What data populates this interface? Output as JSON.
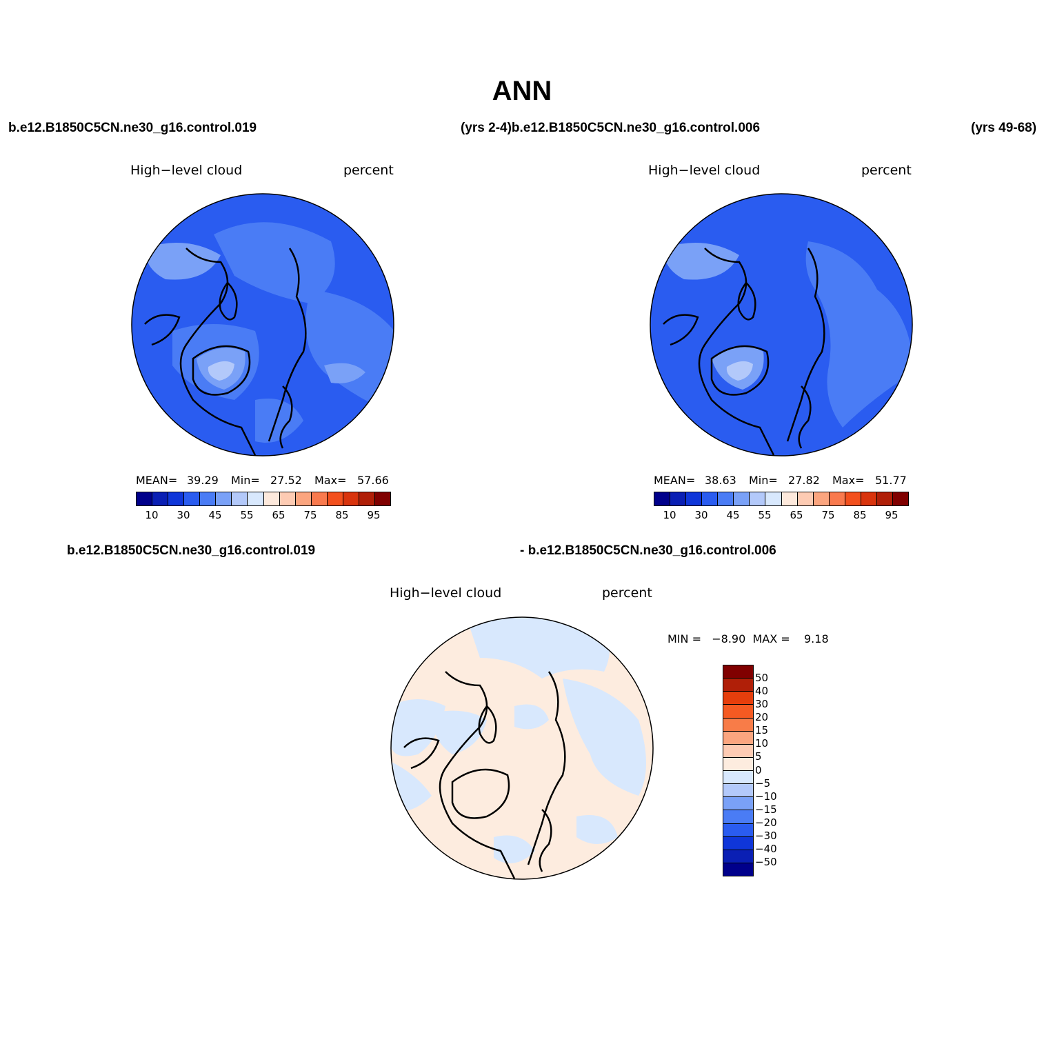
{
  "title": "ANN",
  "top_left_case": "b.e12.B1850C5CN.ne30_g16.control.019",
  "top_mid_case": "(yrs 2-4)b.e12.B1850C5CN.ne30_g16.control.006",
  "top_right_years": "(yrs 49-68)",
  "bottom_case_a": "b.e12.B1850C5CN.ne30_g16.control.019",
  "bottom_case_b": "- b.e12.B1850C5CN.ne30_g16.control.006",
  "panels": [
    {
      "variable": "High−level cloud",
      "units": "percent",
      "mean_label": "MEAN=",
      "mean": "39.29",
      "min_label": "Min=",
      "min": "27.52",
      "max_label": "Max=",
      "max": "57.66"
    },
    {
      "variable": "High−level cloud",
      "units": "percent",
      "mean_label": "MEAN=",
      "mean": "38.63",
      "min_label": "Min=",
      "min": "27.82",
      "max_label": "Max=",
      "max": "51.77"
    }
  ],
  "diff_panel": {
    "variable": "High−level cloud",
    "units": "percent",
    "minmax": "MIN =   −8.90  MAX =    9.18"
  },
  "main_colorbar": {
    "colors": [
      "#00008b",
      "#0a1fb4",
      "#0f36d9",
      "#2a5cf0",
      "#4a7cf5",
      "#7aa1f7",
      "#b3c9fa",
      "#d8e8fd",
      "#fde9dc",
      "#fdcbb3",
      "#fba57f",
      "#f97a4e",
      "#f3501d",
      "#d9340d",
      "#b01f08",
      "#800000"
    ],
    "ticks": [
      "10",
      "30",
      "45",
      "55",
      "65",
      "75",
      "85",
      "95"
    ]
  },
  "diff_colorbar": {
    "colors": [
      "#800000",
      "#b01f08",
      "#e63e0c",
      "#f55a22",
      "#f87c48",
      "#fba57f",
      "#fdcbb3",
      "#fdecdf",
      "#d8e8fd",
      "#b3c9fa",
      "#7aa1f7",
      "#4a7cf5",
      "#2a5cf0",
      "#0f36d9",
      "#0a1fb4",
      "#00008b"
    ],
    "ticks": [
      "50",
      "40",
      "30",
      "20",
      "15",
      "10",
      "5",
      "0",
      "−5",
      "−10",
      "−15",
      "−20",
      "−30",
      "−40",
      "−50"
    ]
  }
}
